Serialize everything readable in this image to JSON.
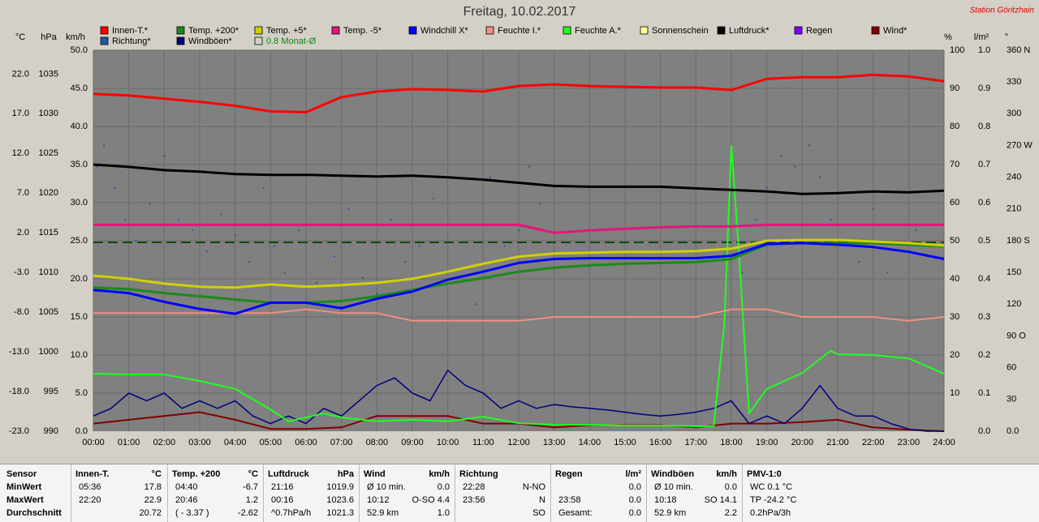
{
  "chart_data": {
    "type": "line",
    "title": "Freitag, 10.02.2017",
    "station": "Station Göritzhain",
    "axis_units": {
      "y": "°C",
      "y2": "hPa",
      "y3": "km/h",
      "y4": "%",
      "y5": "l/m²",
      "y6": "°"
    },
    "x": [
      0,
      1,
      2,
      3,
      4,
      5,
      6,
      7,
      8,
      9,
      10,
      11,
      12,
      13,
      14,
      15,
      16,
      17,
      18,
      19,
      20,
      21,
      22,
      23,
      24
    ],
    "xlim": [
      0,
      24
    ],
    "xticks": [
      {
        "value": 0,
        "label": "00:00"
      },
      {
        "value": 1,
        "label": "01:00"
      },
      {
        "value": 2,
        "label": "02:00"
      },
      {
        "value": 3,
        "label": "03:00"
      },
      {
        "value": 4,
        "label": "04:00"
      },
      {
        "value": 5,
        "label": "05:00"
      },
      {
        "value": 6,
        "label": "06:00"
      },
      {
        "value": 7,
        "label": "07:00"
      },
      {
        "value": 8,
        "label": "08:00"
      },
      {
        "value": 9,
        "label": "09:00"
      },
      {
        "value": 10,
        "label": "10:00"
      },
      {
        "value": 11,
        "label": "11:00"
      },
      {
        "value": 12,
        "label": "12:00"
      },
      {
        "value": 13,
        "label": "13:00"
      },
      {
        "value": 14,
        "label": "14:00"
      },
      {
        "value": 15,
        "label": "15:00"
      },
      {
        "value": 16,
        "label": "16:00"
      },
      {
        "value": 17,
        "label": "17:00"
      },
      {
        "value": 18,
        "label": "18:00"
      },
      {
        "value": 19,
        "label": "19:00"
      },
      {
        "value": 20,
        "label": "20:00"
      },
      {
        "value": 21,
        "label": "21:00"
      },
      {
        "value": 22,
        "label": "22:00"
      },
      {
        "value": 23,
        "label": "23:00"
      },
      {
        "value": 24,
        "label": "24:00"
      }
    ],
    "ylim": [
      -23,
      25
    ],
    "yticks": [
      {
        "value": -23,
        "label": "-23.0"
      },
      {
        "value": -18,
        "label": "-18.0"
      },
      {
        "value": -13,
        "label": "-13.0"
      },
      {
        "value": -8,
        "label": "-8.0"
      },
      {
        "value": -3,
        "label": "-3.0"
      },
      {
        "value": 2,
        "label": "2.0"
      },
      {
        "value": 7,
        "label": "7.0"
      },
      {
        "value": 12,
        "label": "12.0"
      },
      {
        "value": 17,
        "label": "17.0"
      },
      {
        "value": 22,
        "label": "22.0"
      }
    ],
    "y2lim": [
      990,
      1038
    ],
    "y2ticks": [
      990,
      995,
      1000,
      1005,
      1010,
      1015,
      1020,
      1025,
      1030,
      1035
    ],
    "y3lim": [
      0,
      50
    ],
    "y3ticks": [
      {
        "value": 0,
        "label": "0.0"
      },
      {
        "value": 5,
        "label": "5.0"
      },
      {
        "value": 10,
        "label": "10.0"
      },
      {
        "value": 15,
        "label": "15.0"
      },
      {
        "value": 20,
        "label": "20.0"
      },
      {
        "value": 25,
        "label": "25.0"
      },
      {
        "value": 30,
        "label": "30.0"
      },
      {
        "value": 35,
        "label": "35.0"
      },
      {
        "value": 40,
        "label": "40.0"
      },
      {
        "value": 45,
        "label": "45.0"
      },
      {
        "value": 50,
        "label": "50.0"
      }
    ],
    "y4lim": [
      0,
      100
    ],
    "y4ticks": [
      10,
      20,
      30,
      40,
      50,
      60,
      70,
      80,
      90,
      100
    ],
    "y5lim": [
      0,
      1
    ],
    "y5ticks": [
      {
        "value": 0,
        "label": "0.0"
      },
      {
        "value": 0.1,
        "label": "0.1"
      },
      {
        "value": 0.2,
        "label": "0.2"
      },
      {
        "value": 0.3,
        "label": "0.3"
      },
      {
        "value": 0.4,
        "label": "0.4"
      },
      {
        "value": 0.5,
        "label": "0.5"
      },
      {
        "value": 0.6,
        "label": "0.6"
      },
      {
        "value": 0.7,
        "label": "0.7"
      },
      {
        "value": 0.8,
        "label": "0.8"
      },
      {
        "value": 0.9,
        "label": "0.9"
      },
      {
        "value": 1,
        "label": "1.0"
      }
    ],
    "y6lim": [
      0,
      360
    ],
    "y6ticks": [
      {
        "value": 0,
        "label": "0.0"
      },
      30,
      60,
      {
        "value": 90,
        "label": "90 O"
      },
      120,
      150,
      {
        "value": 180,
        "label": "180 S"
      },
      210,
      240,
      {
        "value": 270,
        "label": "270 W"
      },
      300,
      330,
      {
        "value": 360,
        "label": "360 N"
      }
    ],
    "grid": true,
    "series": [
      {
        "name": "Innen-T.*",
        "color": "#ff0000",
        "width": 3,
        "axis": "y",
        "values": [
          19.5,
          19.3,
          18.9,
          18.5,
          18.0,
          17.3,
          17.2,
          19.1,
          19.8,
          20.1,
          20.0,
          19.8,
          20.5,
          20.7,
          20.5,
          20.4,
          20.3,
          20.3,
          20.0,
          21.4,
          21.6,
          21.6,
          21.9,
          21.7,
          21.1
        ]
      },
      {
        "name": "Temp. +200*",
        "color": "#1a8a1a",
        "width": 3,
        "axis": "y",
        "values": [
          -4.9,
          -5.1,
          -5.6,
          -6.0,
          -6.4,
          -6.8,
          -6.8,
          -6.6,
          -6.0,
          -5.2,
          -4.4,
          -3.7,
          -2.9,
          -2.4,
          -2.1,
          -1.9,
          -1.8,
          -1.7,
          -1.3,
          0.5,
          0.7,
          0.7,
          0.7,
          0.5,
          0.3
        ]
      },
      {
        "name": "Temp. +5*",
        "color": "#d0d000",
        "width": 3,
        "axis": "y",
        "values": [
          -3.4,
          -3.8,
          -4.4,
          -4.8,
          -4.9,
          -4.5,
          -4.8,
          -4.6,
          -4.3,
          -3.8,
          -2.9,
          -1.9,
          -1.0,
          -0.6,
          -0.5,
          -0.4,
          -0.4,
          -0.3,
          0.0,
          1.0,
          1.1,
          1.1,
          0.9,
          0.7,
          0.4
        ]
      },
      {
        "name": "Temp. -5*",
        "color": "#e6147c",
        "width": 3,
        "axis": "y",
        "values": [
          3.0,
          3.0,
          3.0,
          3.0,
          3.0,
          3.0,
          3.0,
          3.0,
          3.0,
          3.0,
          3.0,
          3.0,
          3.0,
          2.0,
          2.3,
          2.5,
          2.7,
          2.8,
          2.8,
          3.0,
          3.0,
          3.0,
          3.0,
          3.0,
          3.0
        ]
      },
      {
        "name": "Windchill X*",
        "color": "#0000ff",
        "width": 3,
        "axis": "y",
        "values": [
          -5.2,
          -5.6,
          -6.7,
          -7.6,
          -8.2,
          -6.8,
          -6.8,
          -7.5,
          -6.3,
          -5.4,
          -3.9,
          -2.9,
          -1.8,
          -1.3,
          -1.2,
          -1.2,
          -1.2,
          -1.2,
          -0.9,
          0.6,
          0.7,
          0.5,
          0.2,
          -0.4,
          -1.3
        ]
      },
      {
        "name": "Feuchte I.*",
        "color": "#f09080",
        "width": 2,
        "axis": "y4",
        "values": [
          31,
          31,
          31,
          31,
          31,
          31,
          32,
          31,
          31,
          29,
          29,
          29,
          29,
          30,
          30,
          30,
          30,
          30,
          32,
          32,
          30,
          30,
          30,
          29,
          30
        ]
      },
      {
        "name": "Feuchte A.*",
        "color": "#20ff20",
        "width": 2,
        "axis": "y4",
        "x": [
          0,
          1,
          2,
          3,
          4,
          5,
          5.5,
          6,
          6.5,
          7,
          8,
          9,
          10,
          11,
          12,
          13,
          14,
          15,
          16,
          17,
          17.5,
          17.8,
          18,
          18.2,
          18.5,
          19,
          20,
          20.8,
          21,
          22,
          23,
          24
        ],
        "values": [
          15.1,
          14.9,
          14.9,
          13.2,
          11.1,
          5.7,
          2.6,
          3.6,
          4.7,
          3.6,
          2.6,
          3.0,
          2.6,
          3.8,
          2.1,
          1.7,
          1.7,
          1.5,
          1.5,
          1.3,
          1.3,
          28,
          74.9,
          49,
          4.7,
          11.1,
          15.3,
          21.1,
          20.2,
          20,
          19.1,
          15.1
        ]
      },
      {
        "name": "Sonnenschein",
        "color": "#ffff90"
      },
      {
        "name": "Luftdruck*",
        "color": "#000000",
        "width": 3,
        "axis": "y2",
        "values": [
          1023.6,
          1023.3,
          1022.9,
          1022.7,
          1022.4,
          1022.3,
          1022.3,
          1022.2,
          1022.1,
          1022.2,
          1022.0,
          1021.7,
          1021.3,
          1020.9,
          1020.8,
          1020.8,
          1020.8,
          1020.6,
          1020.4,
          1020.2,
          1019.9,
          1020.0,
          1020.2,
          1020.1,
          1020.3
        ]
      },
      {
        "name": "Regen",
        "color": "#8000ff"
      },
      {
        "name": "Wind*",
        "color": "#800000",
        "width": 2,
        "axis": "y3",
        "values": [
          1.0,
          1.5,
          2.0,
          2.5,
          1.5,
          0.3,
          0.3,
          0.5,
          2.0,
          2.0,
          2.0,
          1.0,
          1.0,
          0.5,
          0.8,
          0.8,
          0.8,
          0.5,
          1.0,
          1.0,
          1.2,
          1.5,
          0.5,
          0.2,
          0.0
        ]
      },
      {
        "name": "Richtung*",
        "color": "#1e5aa0",
        "type": "scatter",
        "axis": "y6",
        "x": [
          0.1,
          0.3,
          0.6,
          0.9,
          1.2,
          1.6,
          2.0,
          2.4,
          2.8,
          3.2,
          3.6,
          4.0,
          4.4,
          4.8,
          5.1,
          5.4,
          5.8,
          6.3,
          6.8,
          7.2,
          7.6,
          8.0,
          8.4,
          8.8,
          9.2,
          9.6,
          10.0,
          10.4,
          10.8,
          11.2,
          11.6,
          12.0,
          12.3,
          12.6,
          18.3,
          18.7,
          19.0,
          19.4,
          19.8,
          20.2,
          20.5,
          20.8,
          21.2,
          21.6,
          22.0,
          22.4,
          22.8,
          23.2
        ],
        "values": [
          250,
          270,
          230,
          200,
          180,
          215,
          260,
          200,
          190,
          170,
          205,
          185,
          160,
          230,
          175,
          150,
          190,
          140,
          165,
          210,
          145,
          130,
          200,
          160,
          175,
          220,
          140,
          195,
          120,
          240,
          175,
          190,
          250,
          215,
          150,
          200,
          230,
          260,
          250,
          270,
          240,
          200,
          180,
          160,
          210,
          150,
          170,
          190
        ]
      },
      {
        "name": "Windböen*",
        "color": "#000080",
        "width": 1.5,
        "axis": "y3",
        "x": [
          0,
          0.5,
          1,
          1.5,
          2,
          2.5,
          3,
          3.5,
          4,
          4.5,
          5,
          5.5,
          6,
          6.5,
          7,
          7.5,
          8,
          8.5,
          9,
          9.5,
          10,
          10.5,
          11,
          11.5,
          12,
          12.5,
          13,
          13.5,
          14,
          14.5,
          15,
          15.5,
          16,
          16.5,
          17,
          17.5,
          18,
          18.5,
          19,
          19.5,
          20,
          20.5,
          21,
          21.5,
          22,
          22.5,
          23,
          23.5,
          24
        ],
        "values": [
          2,
          3,
          5,
          4,
          5,
          3,
          4,
          3,
          4,
          2,
          1,
          2,
          1,
          3,
          2,
          4,
          6,
          7,
          5,
          4,
          8,
          6,
          5,
          3,
          4,
          3,
          3.5,
          3.2,
          3,
          2.8,
          2.5,
          2.2,
          2,
          2.2,
          2.5,
          3,
          4,
          1,
          2,
          1,
          3,
          6,
          3,
          2,
          2,
          1,
          0.3,
          0,
          0
        ]
      }
    ],
    "monthly_avg": {
      "label": "0.8 Monat-Ø",
      "value": 0.8,
      "color": "#0a4a0a"
    }
  },
  "stats_table": {
    "labels": [
      "Sensor",
      "MinWert",
      "MaxWert",
      "Durchschnitt"
    ],
    "groups": [
      {
        "header": "Innen-T.",
        "unit": "°C",
        "rows": [
          {
            "left": "05:36",
            "right": "17.8"
          },
          {
            "left": "22:20",
            "right": "22.9"
          },
          {
            "right": "20.72"
          }
        ]
      },
      {
        "header": "Temp. +200",
        "unit": "°C",
        "rows": [
          {
            "left": "04:40",
            "right": "-6.7"
          },
          {
            "left": "20:46",
            "right": "1.2"
          },
          {
            "left": "( - 3.37 )",
            "right": "-2.62"
          }
        ]
      },
      {
        "header": "Luftdruck",
        "unit": "hPa",
        "rows": [
          {
            "left": "21:16",
            "right": "1019.9"
          },
          {
            "left": "00:16",
            "right": "1023.6"
          },
          {
            "left": "^0.7hPa/h",
            "right": "1021.3"
          }
        ]
      },
      {
        "header": "Wind",
        "unit": "km/h",
        "rows": [
          {
            "left": "Ø 10 min.",
            "right": "0.0"
          },
          {
            "left": "10:12",
            "right": "O-SO 4.4"
          },
          {
            "left": "52.9 km",
            "right": "1.0"
          }
        ]
      },
      {
        "header": "Richtung",
        "rows": [
          {
            "left": "22:28",
            "right": "N-NO"
          },
          {
            "left": "23:56",
            "right": "N"
          },
          {
            "right": "SO"
          }
        ]
      },
      {
        "header": "Regen",
        "unit": "l/m²",
        "rows": [
          {
            "right": "0.0"
          },
          {
            "left": "23:58",
            "right": "0.0"
          },
          {
            "left": "Gesamt:",
            "right": "0.0"
          }
        ]
      },
      {
        "header": "Windböen",
        "unit": "km/h",
        "rows": [
          {
            "left": "Ø 10 min.",
            "right": "0.0"
          },
          {
            "left": "10:18",
            "right": "SO 14.1"
          },
          {
            "left": "52.9 km",
            "right": "2.2"
          }
        ]
      },
      {
        "header": "PMV-1:0",
        "rows": [
          {
            "left": "WC 0.1 °C"
          },
          {
            "left": "TP -24.2 °C"
          },
          {
            "left": "0.2hPa/3h"
          }
        ]
      }
    ]
  }
}
